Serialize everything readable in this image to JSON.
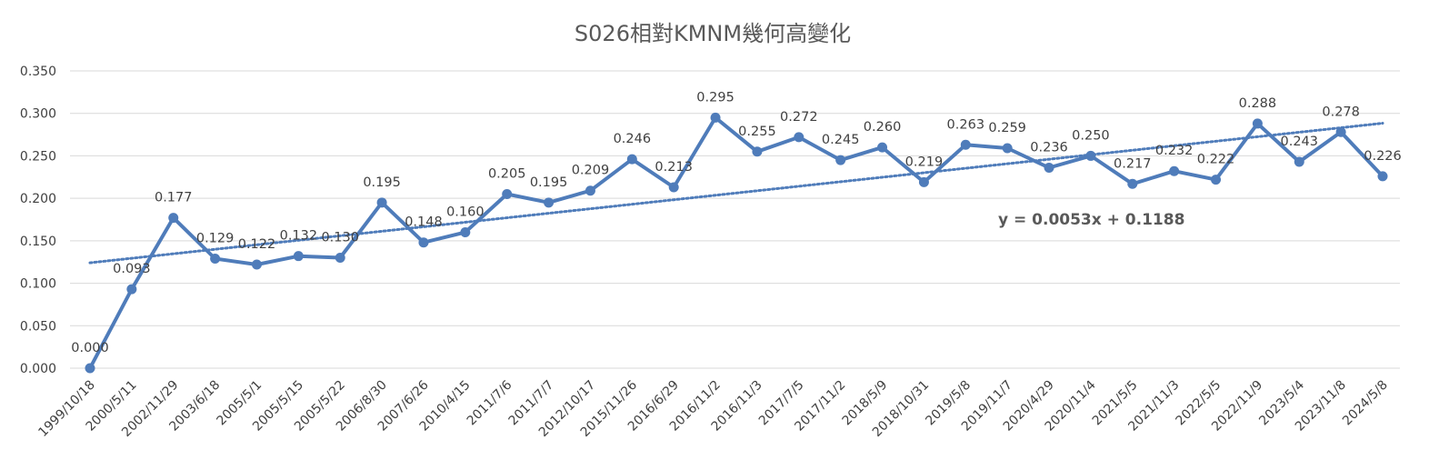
{
  "chart_data": {
    "type": "line",
    "title": "S026相對KMNM幾何高變化",
    "xlabel": "",
    "ylabel": "",
    "ylim": [
      0,
      0.35
    ],
    "y_ticks": [
      "0.000",
      "0.050",
      "0.100",
      "0.150",
      "0.200",
      "0.250",
      "0.300",
      "0.350"
    ],
    "grid": "horizontal",
    "legend": "none",
    "categories": [
      "1999/10/18",
      "2000/5/11",
      "2002/11/29",
      "2003/6/18",
      "2005/5/1",
      "2005/5/15",
      "2005/5/22",
      "2006/8/30",
      "2007/6/26",
      "2010/4/15",
      "2011/7/6",
      "2011/7/7",
      "2012/10/17",
      "2015/11/26",
      "2016/6/29",
      "2016/11/2",
      "2016/11/3",
      "2017/7/5",
      "2017/11/2",
      "2018/5/9",
      "2018/10/31",
      "2019/5/8",
      "2019/11/7",
      "2020/4/29",
      "2020/11/4",
      "2021/5/5",
      "2021/11/3",
      "2022/5/5",
      "2022/11/9",
      "2023/5/4",
      "2023/11/8",
      "2024/5/8"
    ],
    "series": [
      {
        "values": [
          0.0,
          0.093,
          0.177,
          0.129,
          0.122,
          0.132,
          0.13,
          0.195,
          0.148,
          0.16,
          0.205,
          0.195,
          0.209,
          0.246,
          0.213,
          0.295,
          0.255,
          0.272,
          0.245,
          0.26,
          0.219,
          0.263,
          0.259,
          0.236,
          0.25,
          0.217,
          0.232,
          0.222,
          0.288,
          0.243,
          0.278,
          0.226
        ],
        "labels": [
          "0.000",
          "0.093",
          "0.177",
          "0.129",
          "0.122",
          "0.132",
          "0.130",
          "0.195",
          "0.148",
          "0.160",
          "0.205",
          "0.195",
          "0.209",
          "0.246",
          "0.213",
          "0.295",
          "0.255",
          "0.272",
          "0.245",
          "0.260",
          "0.219",
          "0.263",
          "0.259",
          "0.236",
          "0.250",
          "0.217",
          "0.232",
          "0.222",
          "0.288",
          "0.243",
          "0.278",
          "0.226"
        ],
        "color": "#4f7cba"
      }
    ],
    "trendline": {
      "type": "linear",
      "slope": 0.0053,
      "intercept": 0.1188,
      "equation": "y = 0.0053x + 0.1188",
      "color": "#4f7cba",
      "style": "dotted"
    }
  }
}
